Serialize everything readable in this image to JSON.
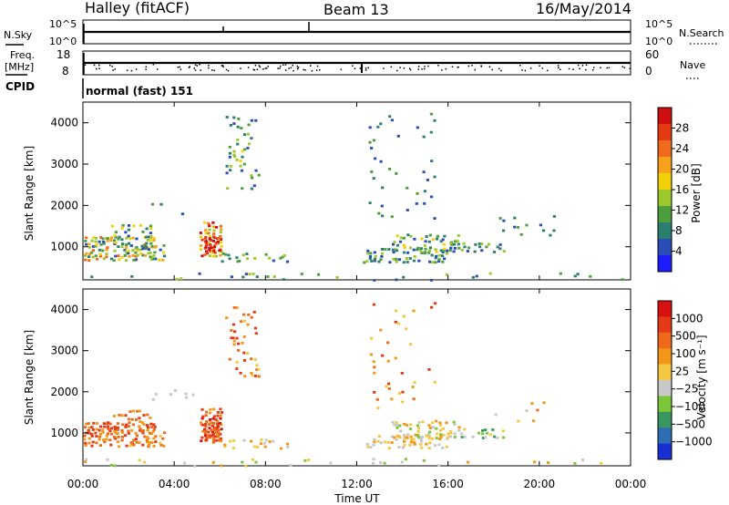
{
  "header": {
    "station": "Halley (fitACF)",
    "beam": "Beam 13",
    "date": "16/May/2014"
  },
  "status_panels": {
    "nsky_label": "N.Sky",
    "nsky_ticks": [
      "10^5",
      "10^0"
    ],
    "nsearch_label": "N.Search",
    "nsearch_ticks": [
      "10^5",
      "10^0"
    ],
    "freq_label": "Freq.",
    "freq_unit": "[MHz]",
    "freq_ticks": [
      "18",
      "8"
    ],
    "nave_label": "Nave",
    "nave_ticks": [
      "60",
      "0"
    ],
    "cpid_label": "CPID",
    "cpid_value": "normal (fast) 151"
  },
  "chart_data": [
    {
      "type": "heatmap",
      "name": "power",
      "ylabel": "Slant Range [km]",
      "yticks": [
        "1000",
        "2000",
        "3000",
        "4000"
      ],
      "ylim": [
        200,
        4500
      ],
      "xlim": [
        0,
        24
      ],
      "colorbar_label": "Power [dB]",
      "colorbar_ticks": [
        "28",
        "24",
        "20",
        "16",
        "12",
        "8",
        "4"
      ],
      "colorbar_colors": [
        "#1c1cff",
        "#2b4db8",
        "#2c7f6e",
        "#4f9e3e",
        "#9cc82e",
        "#f3d10a",
        "#f7a21a",
        "#ef6a1c",
        "#e63a14",
        "#d01010"
      ]
    },
    {
      "type": "heatmap",
      "name": "velocity",
      "ylabel": "Slant Range [km]",
      "yticks": [
        "1000",
        "2000",
        "3000",
        "4000"
      ],
      "ylim": [
        200,
        4500
      ],
      "xlim": [
        0,
        24
      ],
      "xlabel": "Time UT",
      "xticks": [
        "00:00",
        "04:00",
        "08:00",
        "12:00",
        "16:00",
        "20:00",
        "00:00"
      ],
      "colorbar_label": "Velocity [m s⁻¹]",
      "colorbar_ticks": [
        "1000",
        "500",
        "100",
        "25",
        "−25",
        "−100",
        "−500",
        "−1000"
      ],
      "colorbar_colors": [
        "#1a2fd1",
        "#2d6db4",
        "#3a9660",
        "#7cc63a",
        "#c8c8c8",
        "#f5c842",
        "#f3961a",
        "#ee6a1a",
        "#e53a18",
        "#d81010"
      ]
    }
  ]
}
